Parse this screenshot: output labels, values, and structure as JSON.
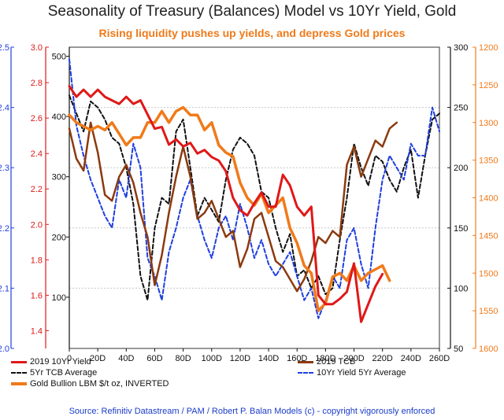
{
  "title": "Seasonality of Treasury (Balances) Model vs 10Yr Yield, Gold",
  "subtitle": "Rising liquidity pushes up yields, and depress Gold prices",
  "source": "Source: Refinitiv Datastream / PAM / Robert P. Balan Models (c) - copyright vigorously enforced",
  "chart_data": {
    "type": "line",
    "x_ticks": [
      "0",
      "20D",
      "40D",
      "60D",
      "80D",
      "100D",
      "120D",
      "140D",
      "160D",
      "180D",
      "200D",
      "220D",
      "240D",
      "260D"
    ],
    "axes": {
      "left_blue": {
        "ticks": [
          "2.0",
          "2.1",
          "2.2",
          "2.3",
          "2.4",
          "2.5"
        ],
        "color": "#1f3fe0"
      },
      "left_red": {
        "ticks": [
          "1.4",
          "1.6",
          "1.8",
          "2.0",
          "2.2",
          "2.4",
          "2.6",
          "2.8",
          "3.0"
        ],
        "color": "#e01818"
      },
      "left_black": {
        "ticks": [
          "100",
          "200",
          "300",
          "400",
          "500"
        ],
        "color": "#111111"
      },
      "right_black": {
        "ticks": [
          "50",
          "100",
          "150",
          "200",
          "250",
          "300"
        ],
        "color": "#111111"
      },
      "right_orange": {
        "ticks": [
          "1200",
          "1250",
          "1300",
          "1350",
          "1400",
          "1450",
          "1500",
          "1550",
          "1600"
        ],
        "color": "#f07a1a"
      }
    },
    "grid": true,
    "legend": {
      "placement": "bottom",
      "items": [
        {
          "label": "2019 10Yr Yield",
          "color": "#e01818",
          "style": "solid"
        },
        {
          "label": "2019 TCB",
          "color": "#8b3a0f",
          "style": "solid"
        },
        {
          "label": "5Yr TCB Average",
          "color": "#111111",
          "style": "dashed"
        },
        {
          "label": "10Yr Yield 5Yr Average",
          "color": "#1f3fe0",
          "style": "dashed"
        },
        {
          "label": "Gold Bullion LBM $/t oz, INVERTED",
          "color": "#f07a1a",
          "style": "solid"
        }
      ]
    },
    "series": [
      {
        "name": "2019 10Yr Yield",
        "color": "#e01818",
        "width": 3,
        "dash": "",
        "x": [
          0,
          5,
          10,
          15,
          20,
          25,
          30,
          35,
          40,
          45,
          50,
          55,
          60,
          65,
          70,
          75,
          80,
          85,
          90,
          95,
          100,
          105,
          110,
          115,
          120,
          125,
          130,
          135,
          140,
          145,
          150,
          155,
          160,
          165,
          170,
          175,
          180,
          185,
          190,
          195,
          200,
          205,
          210,
          215,
          220
        ],
        "y": [
          2.78,
          2.72,
          2.76,
          2.72,
          2.76,
          2.72,
          2.7,
          2.68,
          2.72,
          2.68,
          2.7,
          2.62,
          2.54,
          2.55,
          2.45,
          2.48,
          2.44,
          2.46,
          2.4,
          2.42,
          2.38,
          2.36,
          2.3,
          2.15,
          2.08,
          2.05,
          2.12,
          2.18,
          2.1,
          2.1,
          2.28,
          2.22,
          2.1,
          2.05,
          2.1,
          1.6,
          1.55,
          1.55,
          1.58,
          1.62,
          1.78,
          1.45,
          1.55,
          1.65,
          1.72
        ]
      },
      {
        "name": "2019 TCB",
        "color": "#8b3a0f",
        "width": 2.5,
        "dash": "",
        "x": [
          0,
          5,
          10,
          15,
          20,
          25,
          30,
          35,
          40,
          45,
          50,
          55,
          60,
          65,
          70,
          75,
          80,
          85,
          90,
          95,
          100,
          105,
          110,
          115,
          120,
          125,
          130,
          135,
          140,
          145,
          150,
          155,
          160,
          165,
          170,
          175,
          180,
          185,
          190,
          195,
          200,
          205,
          210,
          215,
          220,
          225,
          230
        ],
        "y": [
          380,
          330,
          310,
          390,
          340,
          270,
          260,
          300,
          320,
          290,
          240,
          200,
          120,
          170,
          240,
          300,
          350,
          300,
          230,
          240,
          260,
          230,
          200,
          210,
          150,
          180,
          230,
          240,
          200,
          160,
          150,
          130,
          110,
          130,
          160,
          200,
          190,
          210,
          200,
          320,
          350,
          300,
          330,
          360,
          350,
          380,
          390
        ]
      },
      {
        "name": "5Yr TCB Average",
        "color": "#111111",
        "width": 2,
        "dash": "5,3",
        "x": [
          0,
          5,
          10,
          15,
          20,
          25,
          30,
          35,
          40,
          45,
          50,
          55,
          60,
          65,
          70,
          75,
          80,
          85,
          90,
          95,
          100,
          105,
          110,
          115,
          120,
          125,
          130,
          135,
          140,
          145,
          150,
          155,
          160,
          165,
          170,
          175,
          180,
          185,
          190,
          195,
          200,
          205,
          210,
          215,
          220,
          225,
          230,
          235,
          240,
          245,
          250,
          255,
          260
        ],
        "y": [
          260,
          245,
          230,
          255,
          250,
          240,
          225,
          220,
          200,
          170,
          110,
          90,
          150,
          175,
          170,
          230,
          240,
          200,
          160,
          175,
          165,
          155,
          190,
          215,
          225,
          220,
          210,
          180,
          175,
          150,
          130,
          145,
          110,
          115,
          100,
          110,
          95,
          100,
          140,
          175,
          220,
          200,
          185,
          210,
          205,
          190,
          180,
          200,
          215,
          175,
          210,
          240,
          245
        ]
      },
      {
        "name": "10Yr Yield 5Yr Average",
        "color": "#1f3fe0",
        "width": 2,
        "dash": "5,3",
        "x": [
          0,
          5,
          10,
          15,
          20,
          25,
          30,
          35,
          40,
          45,
          50,
          55,
          60,
          65,
          70,
          75,
          80,
          85,
          90,
          95,
          100,
          105,
          110,
          115,
          120,
          125,
          130,
          135,
          140,
          145,
          150,
          155,
          160,
          165,
          170,
          175,
          180,
          185,
          190,
          195,
          200,
          205,
          210,
          215,
          220,
          225,
          230,
          235,
          240,
          245,
          250,
          255,
          260
        ],
        "y": [
          2.48,
          2.37,
          2.32,
          2.28,
          2.25,
          2.22,
          2.2,
          2.28,
          2.25,
          2.34,
          2.3,
          2.15,
          2.12,
          2.08,
          2.16,
          2.2,
          2.25,
          2.28,
          2.22,
          2.18,
          2.15,
          2.2,
          2.22,
          2.18,
          2.24,
          2.2,
          2.15,
          2.18,
          2.14,
          2.12,
          2.14,
          2.16,
          2.12,
          2.08,
          2.1,
          2.05,
          2.08,
          2.12,
          2.1,
          2.18,
          2.2,
          2.14,
          2.1,
          2.2,
          2.28,
          2.32,
          2.3,
          2.28,
          2.34,
          2.32,
          2.32,
          2.4,
          2.36
        ]
      },
      {
        "name": "Gold Bullion LBM $/t oz, INVERTED",
        "color": "#f07a1a",
        "width": 3.5,
        "dash": "",
        "x": [
          0,
          5,
          10,
          15,
          20,
          25,
          30,
          35,
          40,
          45,
          50,
          55,
          60,
          65,
          70,
          75,
          80,
          85,
          90,
          95,
          100,
          105,
          110,
          115,
          120,
          125,
          130,
          135,
          140,
          145,
          150,
          155,
          160,
          165,
          170,
          175,
          180,
          185,
          190,
          195,
          200,
          205,
          210,
          215,
          220,
          225
        ],
        "y": [
          1290,
          1300,
          1305,
          1310,
          1305,
          1310,
          1300,
          1315,
          1330,
          1320,
          1320,
          1300,
          1300,
          1285,
          1300,
          1285,
          1280,
          1290,
          1290,
          1310,
          1300,
          1330,
          1340,
          1345,
          1380,
          1400,
          1410,
          1395,
          1420,
          1410,
          1400,
          1440,
          1460,
          1490,
          1500,
          1550,
          1540,
          1505,
          1500,
          1510,
          1490,
          1510,
          1500,
          1495,
          1490,
          1510
        ]
      }
    ]
  }
}
